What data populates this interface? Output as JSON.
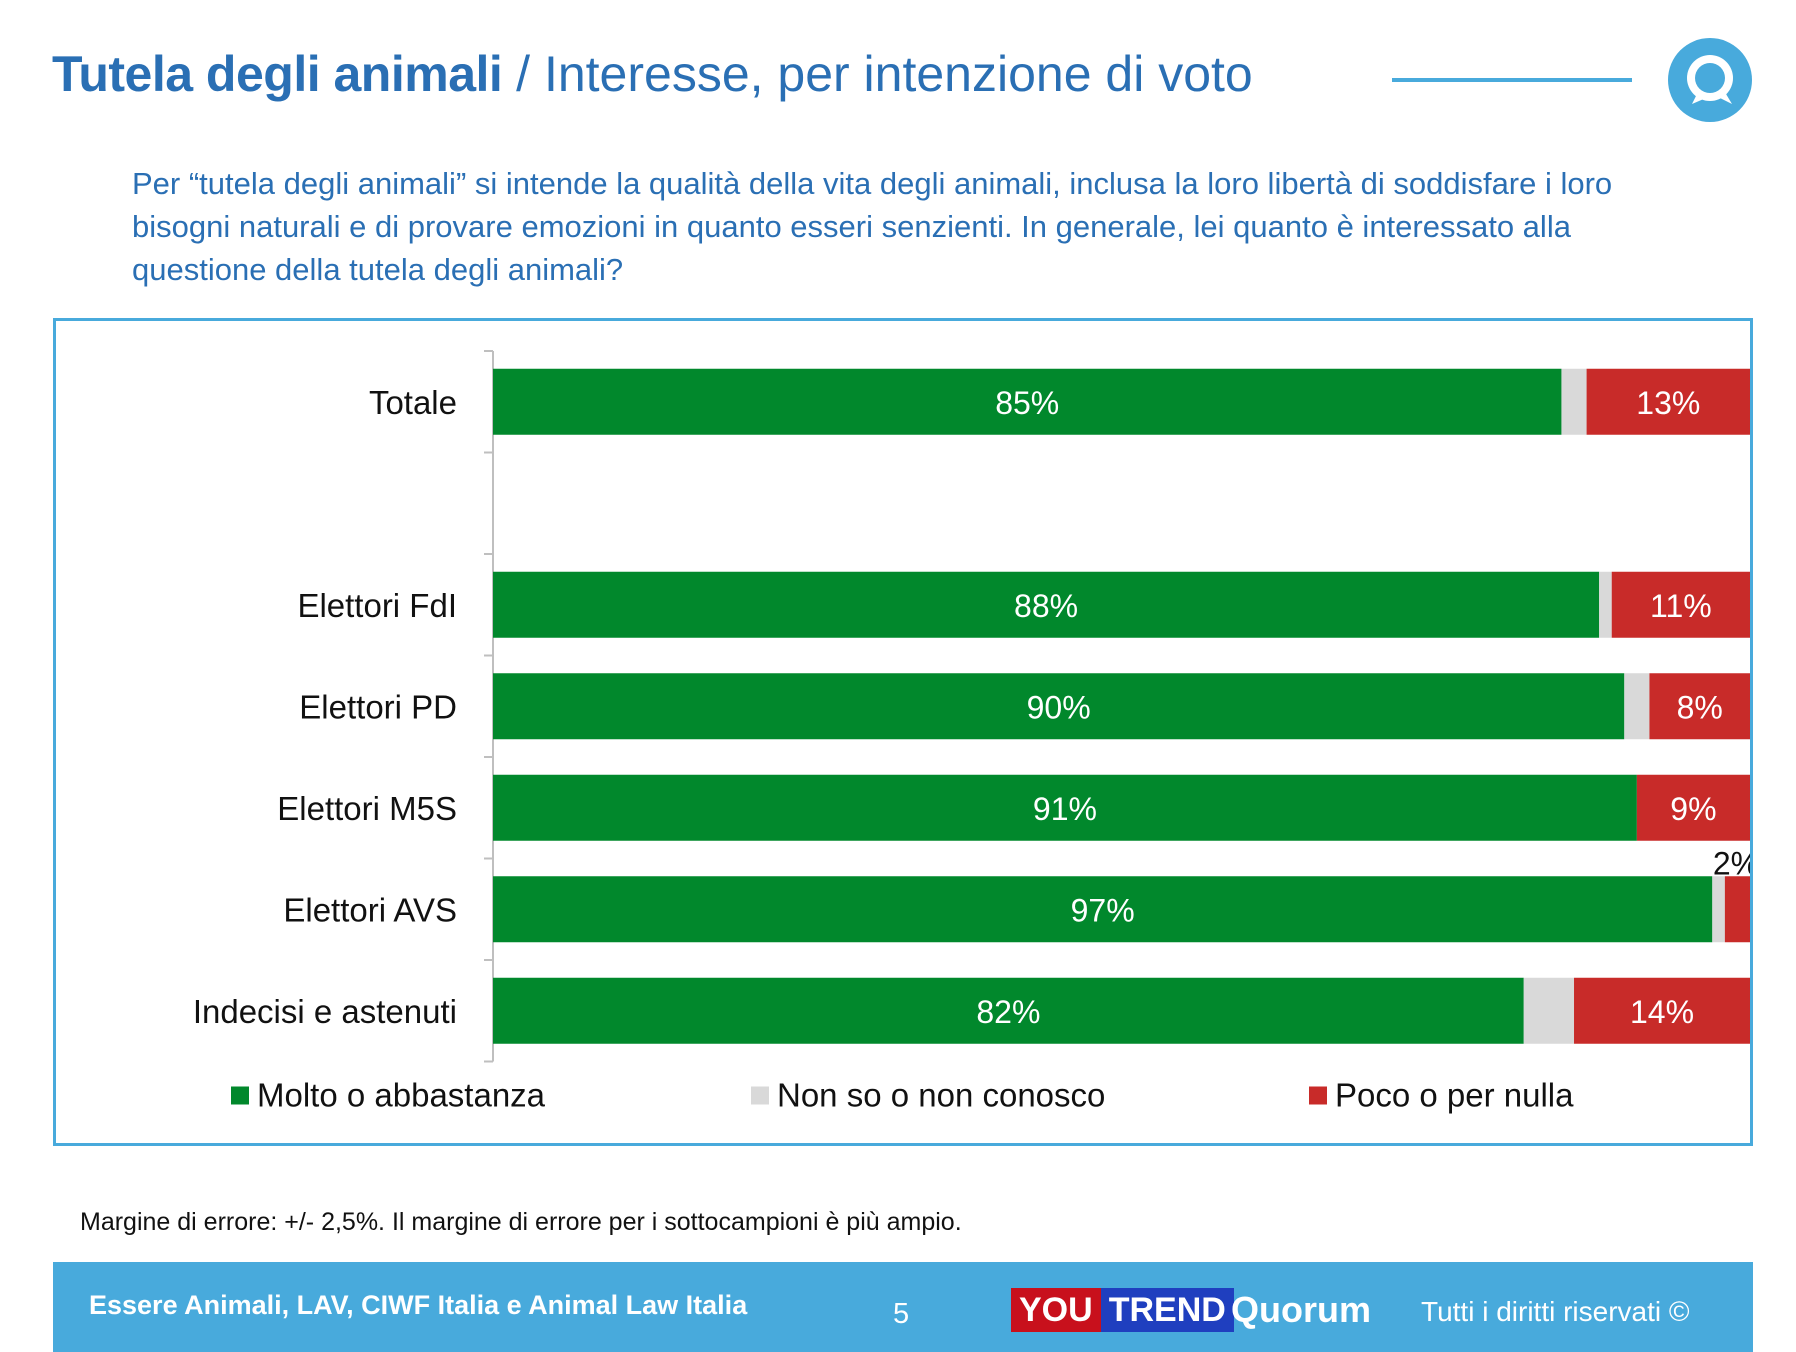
{
  "header": {
    "title_bold": "Tutela degli animali",
    "title_rest": " / Interesse, per intenzione di voto",
    "logo_icon": "quorum-speech-bubble-icon"
  },
  "question": "Per “tutela degli animali” si intende la qualità della vita degli animali, inclusa la loro libertà di soddisfare i loro bisogni naturali e di provare emozioni in quanto esseri senzienti. In generale, lei quanto è interessato alla questione della tutela degli animali?",
  "chart_data": {
    "type": "bar",
    "orientation": "horizontal",
    "stacked": true,
    "title": "",
    "xlabel": "",
    "ylabel": "",
    "xlim": [
      0,
      100
    ],
    "grid": false,
    "legend_position": "bottom",
    "categories": [
      "Totale",
      "",
      "Elettori FdI",
      "Elettori PD",
      "Elettori M5S",
      "Elettori AVS",
      "Indecisi e astenuti"
    ],
    "category_labels": [
      "Totale",
      "",
      "Elettori FdI",
      "Elettori PD",
      "Elettori M5S",
      "Elettori AVS",
      "Indecisi e astenuti"
    ],
    "series": [
      {
        "name": "Molto o abbastanza",
        "color": "#01882c",
        "values": [
          85,
          null,
          88,
          90,
          91,
          97,
          82
        ],
        "labels": [
          "85%",
          "",
          "88%",
          "90%",
          "91%",
          "97%",
          "82%"
        ]
      },
      {
        "name": "Non so o non conosco",
        "color": "#d9d9d9",
        "values": [
          2,
          null,
          1,
          2,
          0,
          1,
          4
        ],
        "labels": [
          "",
          "",
          "",
          "",
          "",
          "",
          ""
        ]
      },
      {
        "name": "Poco o per nulla",
        "color": "#c82b29",
        "values": [
          13,
          null,
          11,
          8,
          9,
          2,
          14
        ],
        "labels": [
          "13%",
          "",
          "11%",
          "8%",
          "9%",
          "2%",
          "14%"
        ]
      }
    ]
  },
  "note": "Margine di errore: +/- 2,5%. Il margine di errore per i sottocampioni è più ampio.",
  "footer": {
    "sponsor": "Essere Animali, LAV, CIWF Italia e Animal Law Italia",
    "page_number": "5",
    "brand_you": "YOU",
    "brand_trend": "TREND",
    "brand_quorum": "Quorum",
    "rights": "Tutti i diritti riservati ©"
  }
}
